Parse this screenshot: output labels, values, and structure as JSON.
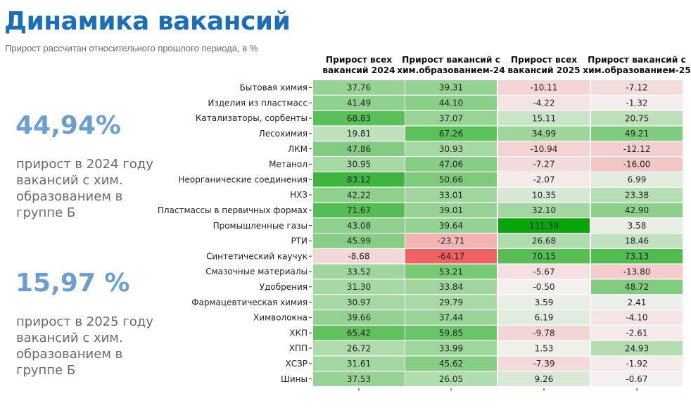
{
  "header": {
    "title": "Динамика вакансий",
    "subtitle": "Прирост рассчитан относительного прошлого периода, в %"
  },
  "stats": [
    {
      "value": "44,94%",
      "description": "прирост в 2024 году вакансий с хим. образованием в группе Б"
    },
    {
      "value": "15,97 %",
      "description": "прирост в 2025 году вакансий с хим. образованием в группе Б"
    }
  ],
  "colors": {
    "positive_max": "#0aa50a",
    "negative_max": "#f06262",
    "neutral": "#f5f2f2",
    "title": "#1a6fb8",
    "stat": "#6b9ed2"
  },
  "chart_data": {
    "type": "heatmap",
    "color_scale": {
      "min": -64.17,
      "max": 111.39,
      "center": 0
    },
    "columns": [
      [
        "Прирост всех",
        "вакансий 2024"
      ],
      [
        "Прирост вакансий с",
        "хим.образованием-24"
      ],
      [
        "Прирост всех",
        "вакансий 2025"
      ],
      [
        "Прирост вакансий с",
        "хим.образованием-25"
      ]
    ],
    "rows": [
      {
        "label": "Бытовая химия",
        "values": [
          37.76,
          39.31,
          -10.11,
          -7.12
        ]
      },
      {
        "label": "Изделия из пластмасс",
        "values": [
          41.49,
          44.1,
          -4.22,
          -1.32
        ]
      },
      {
        "label": "Катализаторы, сорбенты",
        "values": [
          68.83,
          37.07,
          15.11,
          20.75
        ]
      },
      {
        "label": "Лесохимия",
        "values": [
          19.81,
          67.26,
          34.99,
          49.21
        ]
      },
      {
        "label": "ЛКМ",
        "values": [
          47.86,
          30.93,
          -10.94,
          -12.12
        ]
      },
      {
        "label": "Метанол",
        "values": [
          30.95,
          47.06,
          -7.27,
          -16.0
        ]
      },
      {
        "label": "Неорганические соединения",
        "values": [
          83.12,
          50.66,
          -2.07,
          6.99
        ]
      },
      {
        "label": "НХЗ",
        "values": [
          42.22,
          33.01,
          10.35,
          23.38
        ]
      },
      {
        "label": "Пластмассы в первичных формах",
        "values": [
          71.67,
          39.01,
          32.1,
          42.9
        ]
      },
      {
        "label": "Промышленные газы",
        "values": [
          43.08,
          39.64,
          111.39,
          3.58
        ]
      },
      {
        "label": "РТИ",
        "values": [
          45.99,
          -23.71,
          26.68,
          18.46
        ]
      },
      {
        "label": "Синтетический каучук",
        "values": [
          -8.68,
          -64.17,
          70.15,
          73.13
        ]
      },
      {
        "label": "Смазочные материалы",
        "values": [
          33.52,
          53.21,
          -5.67,
          -13.8
        ]
      },
      {
        "label": "Удобрения",
        "values": [
          31.3,
          33.84,
          -0.5,
          48.72
        ]
      },
      {
        "label": "Фармацевтическая химия",
        "values": [
          30.97,
          29.79,
          3.59,
          2.41
        ]
      },
      {
        "label": "Химволокна",
        "values": [
          39.66,
          37.44,
          6.19,
          -4.1
        ]
      },
      {
        "label": "ХКП",
        "values": [
          65.42,
          59.85,
          -9.78,
          -2.61
        ]
      },
      {
        "label": "ХПП",
        "values": [
          26.72,
          33.99,
          1.53,
          24.93
        ]
      },
      {
        "label": "ХСЗР",
        "values": [
          31.61,
          45.62,
          -7.39,
          -1.92
        ]
      },
      {
        "label": "Шины",
        "values": [
          37.53,
          26.05,
          9.26,
          -0.67
        ]
      }
    ]
  }
}
